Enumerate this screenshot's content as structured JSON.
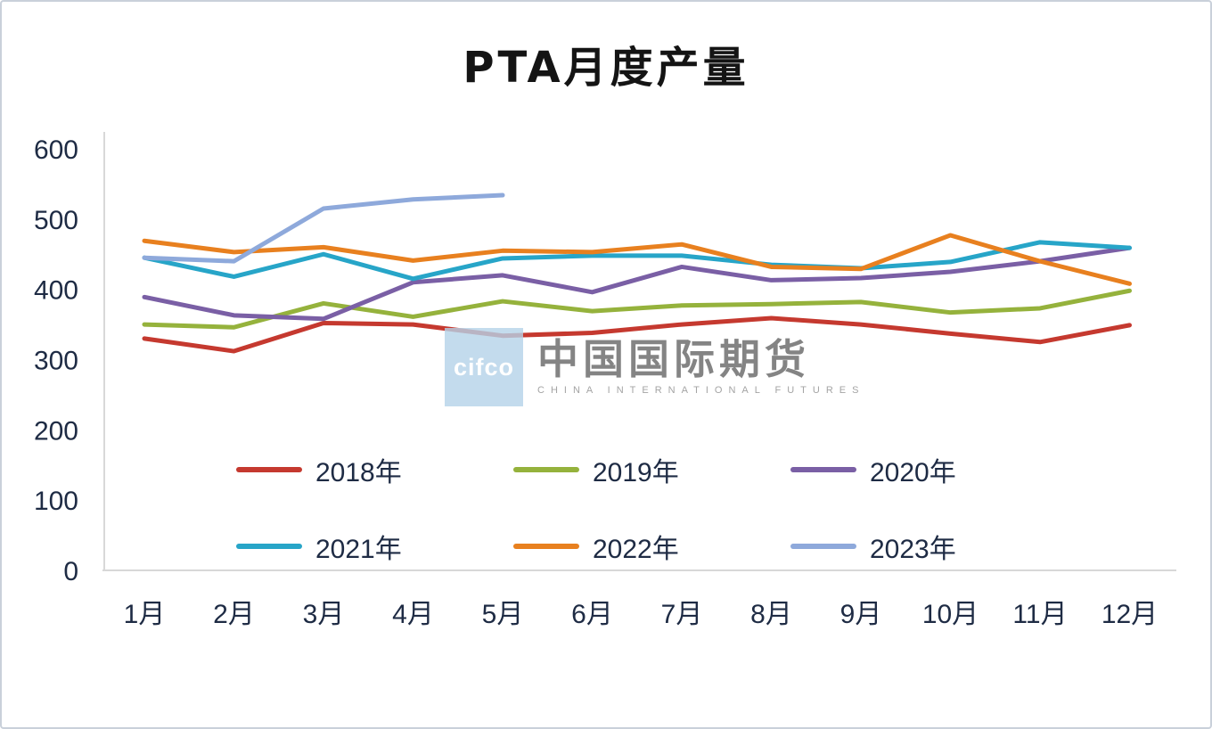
{
  "chart_data": {
    "type": "line",
    "title": "PTA月度产量",
    "categories": [
      "1月",
      "2月",
      "3月",
      "4月",
      "5月",
      "6月",
      "7月",
      "8月",
      "9月",
      "10月",
      "11月",
      "12月"
    ],
    "ylim": [
      0,
      600
    ],
    "yticks": [
      0,
      100,
      200,
      300,
      400,
      500,
      600
    ],
    "grid": false,
    "legend_position": "bottom-inside",
    "series": [
      {
        "name": "2018年",
        "color": "#C5392F",
        "values": [
          330,
          312,
          352,
          350,
          334,
          338,
          350,
          359,
          350,
          337,
          325,
          349
        ]
      },
      {
        "name": "2019年",
        "color": "#95B23C",
        "values": [
          350,
          346,
          380,
          361,
          383,
          369,
          377,
          379,
          382,
          367,
          373,
          398
        ]
      },
      {
        "name": "2020年",
        "color": "#7A5FA5",
        "values": [
          389,
          363,
          358,
          410,
          420,
          396,
          432,
          413,
          416,
          425,
          440,
          459
        ]
      },
      {
        "name": "2021年",
        "color": "#27A5C8",
        "values": [
          445,
          418,
          450,
          415,
          444,
          448,
          448,
          435,
          430,
          439,
          467,
          459
        ]
      },
      {
        "name": "2022年",
        "color": "#E8801F",
        "values": [
          469,
          453,
          460,
          441,
          455,
          453,
          464,
          432,
          429,
          477,
          440,
          408
        ]
      },
      {
        "name": "2023年",
        "color": "#8EA9DB",
        "values": [
          445,
          440,
          515,
          528,
          534
        ]
      }
    ]
  },
  "watermark": {
    "logo_text": "cifco",
    "text": "中国国际期货",
    "subtext": "CHINA INTERNATIONAL FUTURES"
  }
}
